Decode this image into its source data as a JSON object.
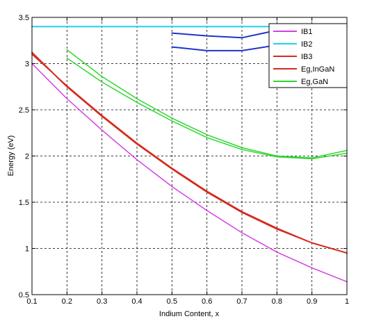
{
  "chart_data": {
    "type": "line",
    "xlabel": "Indium Content, x",
    "ylabel": "Energy (eV)",
    "xlim": [
      0.1,
      1.0
    ],
    "ylim": [
      0.5,
      3.5
    ],
    "xticks": [
      "0.1",
      "0.2",
      "0.3",
      "0.4",
      "0.5",
      "0.6",
      "0.7",
      "0.8",
      "0.9",
      "1"
    ],
    "yticks": [
      "0.5",
      "1",
      "1.5",
      "2",
      "2.5",
      "3",
      "3.5"
    ],
    "grid": true,
    "legend_position": "top-right",
    "series": [
      {
        "name": "IB1",
        "color": "#d43fe0",
        "width": 1.5,
        "points": [
          [
            0.1,
            3.0
          ],
          [
            0.2,
            2.62
          ],
          [
            0.3,
            2.28
          ],
          [
            0.4,
            1.96
          ],
          [
            0.5,
            1.67
          ],
          [
            0.6,
            1.41
          ],
          [
            0.7,
            1.17
          ],
          [
            0.8,
            0.96
          ],
          [
            0.9,
            0.79
          ],
          [
            1.0,
            0.64
          ]
        ]
      },
      {
        "name": "IB2",
        "color": "#1fd3e6",
        "width": 2,
        "points": [
          [
            0.1,
            3.4
          ],
          [
            1.0,
            3.4
          ]
        ]
      },
      {
        "name": "IB2",
        "color": "#1f35c8",
        "width": 2,
        "hidden_in_legend": true,
        "points": [
          [
            0.5,
            3.33
          ],
          [
            0.6,
            3.3
          ],
          [
            0.7,
            3.28
          ],
          [
            0.8,
            3.36
          ],
          [
            0.85,
            3.4
          ]
        ]
      },
      {
        "name": "IB2",
        "color": "#1f35c8",
        "width": 2,
        "hidden_in_legend": true,
        "points": [
          [
            0.5,
            3.18
          ],
          [
            0.6,
            3.14
          ],
          [
            0.7,
            3.14
          ],
          [
            0.8,
            3.2
          ],
          [
            0.85,
            3.24
          ]
        ]
      },
      {
        "name": "IB3",
        "color": "#d42b1f",
        "width": 1.5,
        "points": [
          [
            0.1,
            3.1
          ],
          [
            0.2,
            2.76
          ],
          [
            0.3,
            2.44
          ],
          [
            0.4,
            2.14
          ],
          [
            0.5,
            1.87
          ],
          [
            0.6,
            1.62
          ],
          [
            0.7,
            1.4
          ],
          [
            0.8,
            1.22
          ],
          [
            0.9,
            1.06
          ],
          [
            1.0,
            0.95
          ]
        ]
      },
      {
        "name": "Eg,InGaN",
        "color": "#d42b1f",
        "width": 2,
        "points": [
          [
            0.1,
            3.12
          ],
          [
            0.2,
            2.75
          ],
          [
            0.3,
            2.43
          ],
          [
            0.4,
            2.13
          ],
          [
            0.5,
            1.86
          ],
          [
            0.6,
            1.61
          ],
          [
            0.7,
            1.39
          ],
          [
            0.8,
            1.21
          ],
          [
            0.9,
            1.06
          ],
          [
            1.0,
            0.95
          ]
        ]
      },
      {
        "name": "Eg,GaN",
        "color": "#2fd62f",
        "width": 1.5,
        "points": [
          [
            0.2,
            3.06
          ],
          [
            0.3,
            2.8
          ],
          [
            0.4,
            2.58
          ],
          [
            0.5,
            2.38
          ],
          [
            0.6,
            2.2
          ],
          [
            0.7,
            2.07
          ],
          [
            0.8,
            1.99
          ],
          [
            0.9,
            1.97
          ],
          [
            1.0,
            2.03
          ]
        ]
      },
      {
        "name": "Eg,GaN",
        "color": "#2fd62f",
        "width": 1.5,
        "hidden_in_legend": true,
        "points": [
          [
            0.2,
            3.15
          ],
          [
            0.3,
            2.86
          ],
          [
            0.4,
            2.62
          ],
          [
            0.5,
            2.41
          ],
          [
            0.6,
            2.23
          ],
          [
            0.7,
            2.09
          ],
          [
            0.8,
            2.0
          ],
          [
            0.9,
            1.98
          ],
          [
            1.0,
            2.06
          ]
        ]
      }
    ],
    "legend": [
      {
        "label": "IB1",
        "color": "#d43fe0"
      },
      {
        "label": "IB2",
        "color": "#1fd3e6"
      },
      {
        "label": "IB3",
        "color": "#d42b1f"
      },
      {
        "label": "Eg,InGaN",
        "color": "#d42b1f"
      },
      {
        "label": "Eg,GaN",
        "color": "#2fd62f"
      }
    ]
  }
}
